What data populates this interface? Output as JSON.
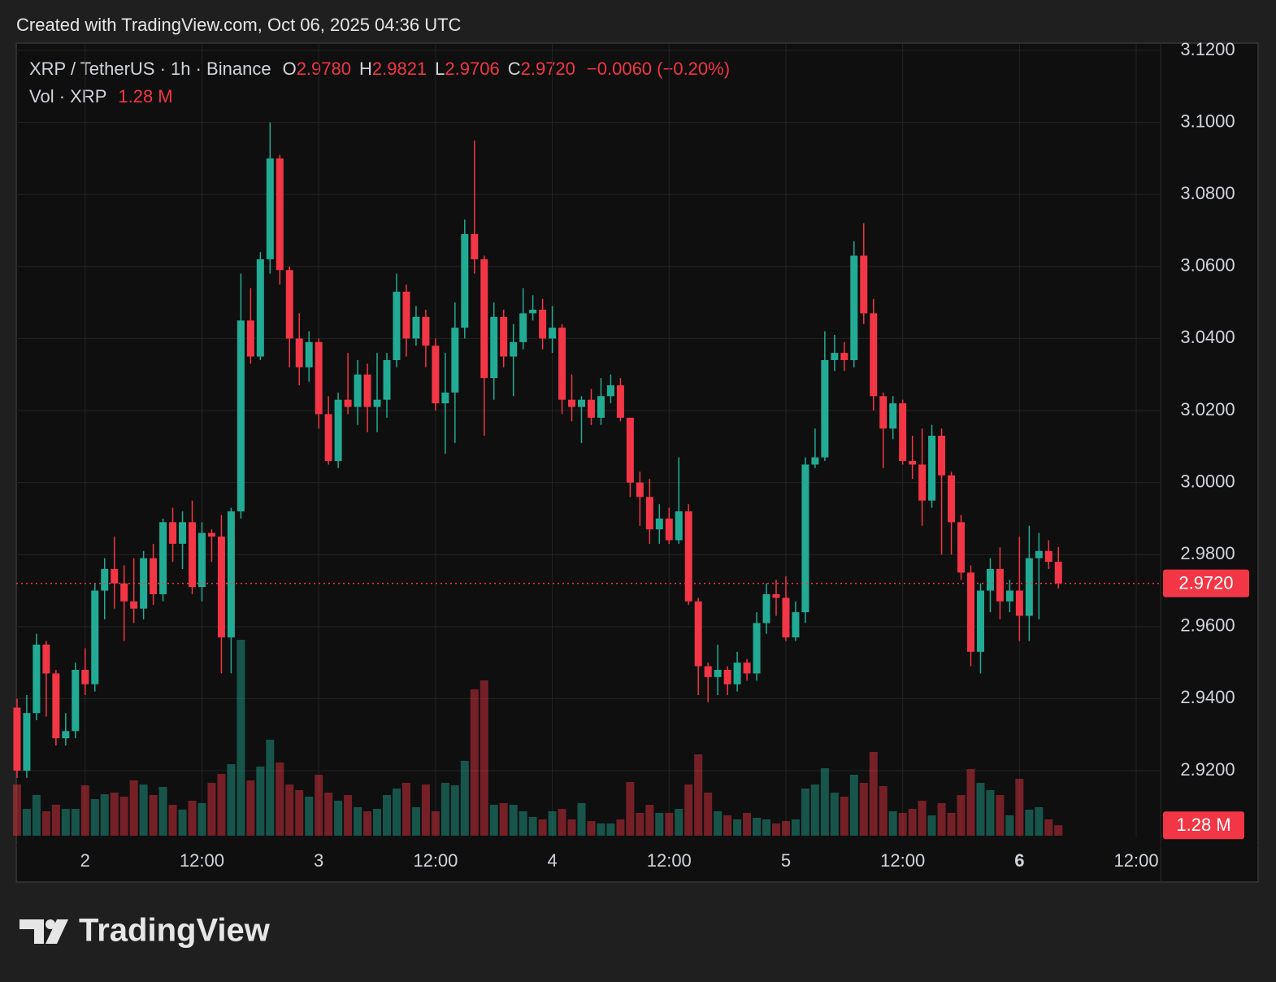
{
  "header": "Created with TradingView.com, Oct 06, 2025 04:36 UTC",
  "logo": "TradingView",
  "chart_data": {
    "type": "candlestick",
    "title": "XRP / TetherUS · 1h · Binance",
    "legend": {
      "o": "O",
      "open": "2.9780",
      "h": "H",
      "high": "2.9821",
      "l": "L",
      "low": "2.9706",
      "c": "C",
      "close": "2.9720",
      "change": "−0.0060 (−0.20%)"
    },
    "volume_name": "Vol · XRP",
    "volume_value_label": "1.28 M",
    "up_color": "#22ab94",
    "down_color": "#f23645",
    "grid": true,
    "ylim": [
      2.9015,
      3.1218
    ],
    "yticks": [
      {
        "value": 3.12,
        "label": "3.1200"
      },
      {
        "value": 3.1,
        "label": "3.1000"
      },
      {
        "value": 3.08,
        "label": "3.0800"
      },
      {
        "value": 3.06,
        "label": "3.0600"
      },
      {
        "value": 3.04,
        "label": "3.0400"
      },
      {
        "value": 3.02,
        "label": "3.0200"
      },
      {
        "value": 3.0,
        "label": "3.0000"
      },
      {
        "value": 2.98,
        "label": "2.9800"
      },
      {
        "value": 2.96,
        "label": "2.9600"
      },
      {
        "value": 2.94,
        "label": "2.9400"
      },
      {
        "value": 2.92,
        "label": "2.9200"
      }
    ],
    "xlim": [
      -0.08,
      117.5
    ],
    "xticks": [
      {
        "value": 7,
        "label": "2"
      },
      {
        "value": 19,
        "label": "12:00"
      },
      {
        "value": 31,
        "label": "3"
      },
      {
        "value": 43,
        "label": "12:00"
      },
      {
        "value": 55,
        "label": "4"
      },
      {
        "value": 67,
        "label": "12:00"
      },
      {
        "value": 79,
        "label": "5"
      },
      {
        "value": 91,
        "label": "12:00"
      },
      {
        "value": 103,
        "label": "6"
      },
      {
        "value": 115,
        "label": "12:00"
      }
    ],
    "open": [
      2.9375,
      2.92,
      2.936,
      2.955,
      2.947,
      2.929,
      2.931,
      2.948,
      2.944,
      2.97,
      2.976,
      2.972,
      2.967,
      2.965,
      2.979,
      2.969,
      2.989,
      2.983,
      2.989,
      2.971,
      2.986,
      2.985,
      2.957,
      2.992,
      3.045,
      3.035,
      3.062,
      3.09,
      3.059,
      3.04,
      3.032,
      3.039,
      3.019,
      3.006,
      3.023,
      3.021,
      3.03,
      3.021,
      3.023,
      3.034,
      3.053,
      3.04,
      3.046,
      3.038,
      3.022,
      3.025,
      3.043,
      3.069,
      3.062,
      3.029,
      3.046,
      3.035,
      3.039,
      3.047,
      3.048,
      3.04,
      3.043,
      3.023,
      3.021,
      3.023,
      3.018,
      3.024,
      3.027,
      3.018,
      3.0,
      2.996,
      2.987,
      2.99,
      2.984,
      2.992,
      2.967,
      2.949,
      2.946,
      2.948,
      2.944,
      2.95,
      2.947,
      2.961,
      2.969,
      2.968,
      2.957,
      2.964,
      3.005,
      3.007,
      3.034,
      3.036,
      3.034,
      3.063,
      3.047,
      3.024,
      3.015,
      3.022,
      3.006,
      3.005,
      2.995,
      3.013,
      3.002,
      2.989,
      2.975,
      2.953,
      2.97,
      2.976,
      2.967,
      2.97,
      2.963,
      2.979,
      2.981,
      2.978
    ],
    "high": [
      2.94,
      2.941,
      2.958,
      2.956,
      2.948,
      2.936,
      2.95,
      2.954,
      2.972,
      2.979,
      2.985,
      2.977,
      2.979,
      2.981,
      2.983,
      2.99,
      2.993,
      2.992,
      2.995,
      2.989,
      2.987,
      2.991,
      2.993,
      3.058,
      3.054,
      3.064,
      3.1,
      3.091,
      3.06,
      3.047,
      3.042,
      3.04,
      3.024,
      3.025,
      3.036,
      3.034,
      3.033,
      3.036,
      3.036,
      3.058,
      3.055,
      3.049,
      3.048,
      3.04,
      3.036,
      3.05,
      3.073,
      3.095,
      3.063,
      3.05,
      3.048,
      3.044,
      3.054,
      3.052,
      3.051,
      3.049,
      3.044,
      3.03,
      3.024,
      3.026,
      3.029,
      3.03,
      3.029,
      3.018,
      3.003,
      3.001,
      2.994,
      2.993,
      3.007,
      2.994,
      2.968,
      2.95,
      2.955,
      2.949,
      2.953,
      2.951,
      2.964,
      2.972,
      2.973,
      2.974,
      2.967,
      3.007,
      3.015,
      3.042,
      3.041,
      3.039,
      3.067,
      3.072,
      3.051,
      3.025,
      3.024,
      3.023,
      3.013,
      3.015,
      3.016,
      3.015,
      3.003,
      2.991,
      2.977,
      2.972,
      2.979,
      2.982,
      2.973,
      2.985,
      2.988,
      2.986,
      2.984,
      2.9821
    ],
    "low": [
      2.918,
      2.918,
      2.934,
      2.935,
      2.927,
      2.927,
      2.929,
      2.941,
      2.942,
      2.962,
      2.965,
      2.956,
      2.961,
      2.962,
      2.966,
      2.967,
      2.978,
      2.976,
      2.969,
      2.967,
      2.978,
      2.947,
      2.947,
      2.99,
      3.033,
      3.034,
      3.058,
      3.055,
      3.032,
      3.027,
      3.028,
      3.015,
      3.005,
      3.004,
      3.019,
      3.016,
      3.014,
      3.014,
      3.018,
      3.032,
      3.035,
      3.038,
      3.032,
      3.02,
      3.008,
      3.011,
      3.04,
      3.058,
      3.013,
      3.023,
      3.032,
      3.024,
      3.037,
      3.045,
      3.037,
      3.036,
      3.019,
      3.017,
      3.011,
      3.016,
      3.016,
      3.022,
      3.017,
      2.996,
      2.988,
      2.983,
      2.983,
      2.983,
      2.983,
      2.966,
      2.941,
      2.939,
      2.941,
      2.941,
      2.942,
      2.945,
      2.945,
      2.958,
      2.963,
      2.956,
      2.956,
      2.961,
      3.004,
      3.006,
      3.031,
      3.031,
      3.032,
      3.044,
      3.02,
      3.004,
      3.012,
      3.005,
      3.001,
      2.988,
      2.993,
      2.98,
      2.98,
      2.973,
      2.949,
      2.947,
      2.964,
      2.962,
      2.964,
      2.956,
      2.956,
      2.962,
      2.976,
      2.9706
    ],
    "close": [
      2.92,
      2.936,
      2.955,
      2.947,
      2.929,
      2.931,
      2.948,
      2.944,
      2.97,
      2.976,
      2.972,
      2.967,
      2.965,
      2.979,
      2.969,
      2.989,
      2.983,
      2.989,
      2.971,
      2.986,
      2.985,
      2.957,
      2.992,
      3.045,
      3.035,
      3.062,
      3.09,
      3.059,
      3.04,
      3.032,
      3.039,
      3.019,
      3.006,
      3.023,
      3.021,
      3.03,
      3.021,
      3.023,
      3.034,
      3.053,
      3.04,
      3.046,
      3.038,
      3.022,
      3.025,
      3.043,
      3.069,
      3.062,
      3.029,
      3.046,
      3.035,
      3.039,
      3.047,
      3.048,
      3.04,
      3.043,
      3.023,
      3.021,
      3.023,
      3.018,
      3.024,
      3.027,
      3.018,
      3.0,
      2.996,
      2.987,
      2.99,
      2.984,
      2.992,
      2.967,
      2.949,
      2.946,
      2.948,
      2.944,
      2.95,
      2.947,
      2.961,
      2.969,
      2.968,
      2.957,
      2.964,
      3.005,
      3.007,
      3.034,
      3.036,
      3.034,
      3.063,
      3.047,
      3.024,
      3.015,
      3.022,
      3.006,
      3.005,
      2.995,
      3.013,
      3.002,
      2.989,
      2.975,
      2.953,
      2.97,
      2.976,
      2.967,
      2.97,
      2.963,
      2.979,
      2.981,
      2.978,
      2.972
    ],
    "volume": [
      6.3,
      3.3,
      5.0,
      3.0,
      3.8,
      3.3,
      3.3,
      6.2,
      4.5,
      5.1,
      5.3,
      4.8,
      6.8,
      6.3,
      5.0,
      6.0,
      3.8,
      3.2,
      4.3,
      4.0,
      6.5,
      7.6,
      8.8,
      24.1,
      6.8,
      8.5,
      11.8,
      9.0,
      6.3,
      5.6,
      4.8,
      7.5,
      5.3,
      4.3,
      5.0,
      3.5,
      3.0,
      3.3,
      5.0,
      5.8,
      6.5,
      3.5,
      6.3,
      3.0,
      6.5,
      6.2,
      9.2,
      18.0,
      19.1,
      3.8,
      4.0,
      3.8,
      3.0,
      2.3,
      2.0,
      3.0,
      3.3,
      2.0,
      4.0,
      1.8,
      1.5,
      1.5,
      2.0,
      6.6,
      2.8,
      3.8,
      2.8,
      2.8,
      3.3,
      6.3,
      10.0,
      5.3,
      3.0,
      2.5,
      2.0,
      2.8,
      2.2,
      2.0,
      1.5,
      1.8,
      2.0,
      5.8,
      6.3,
      8.3,
      5.3,
      4.8,
      7.5,
      6.5,
      10.3,
      6.1,
      3.0,
      2.8,
      3.3,
      4.3,
      2.5,
      4.0,
      2.8,
      5.0,
      8.2,
      6.5,
      5.6,
      5.0,
      2.5,
      7.0,
      3.2,
      3.5,
      2.0,
      1.28
    ]
  }
}
